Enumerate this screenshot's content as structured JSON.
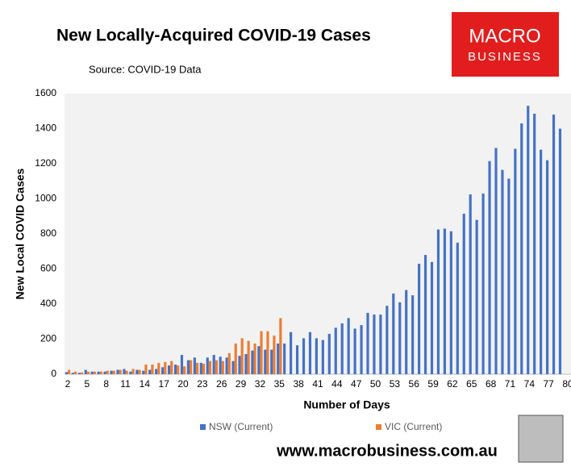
{
  "chart_data": {
    "type": "bar",
    "title": "New Locally-Acquired COVID-19 Cases",
    "subtitle": "Source: COVID-19 Data",
    "x_label": "Number of Days",
    "y_label": "New Local COVID Cases",
    "categories": [
      "2",
      null,
      null,
      "5",
      null,
      null,
      "8",
      null,
      null,
      "11",
      null,
      null,
      "14",
      null,
      null,
      "17",
      null,
      null,
      "20",
      null,
      null,
      "23",
      null,
      null,
      "26",
      null,
      null,
      "29",
      null,
      null,
      "32",
      null,
      null,
      "35",
      null,
      null,
      "38",
      null,
      null,
      "41",
      null,
      null,
      "44",
      null,
      null,
      "47",
      null,
      null,
      "50",
      null,
      null,
      "53",
      null,
      null,
      "56",
      null,
      null,
      "59",
      null,
      null,
      "62",
      null,
      null,
      "65",
      null,
      null,
      "68",
      null,
      null,
      "71",
      null,
      null,
      "74",
      null,
      null,
      "77",
      null,
      null,
      "80"
    ],
    "series": [
      {
        "name": "NSW (Current)",
        "color": "#4472c4",
        "values": [
          12,
          8,
          8,
          25,
          15,
          15,
          15,
          20,
          25,
          30,
          15,
          25,
          20,
          25,
          30,
          40,
          50,
          55,
          110,
          80,
          95,
          65,
          95,
          110,
          100,
          95,
          75,
          105,
          115,
          135,
          160,
          140,
          140,
          175,
          175,
          240,
          165,
          205,
          240,
          205,
          195,
          230,
          265,
          290,
          320,
          260,
          280,
          350,
          340,
          340,
          390,
          460,
          410,
          480,
          450,
          630,
          680,
          640,
          825,
          830,
          815,
          750,
          915,
          1025,
          880,
          1030,
          1215,
          1290,
          1165,
          1115,
          1285,
          1430,
          1530,
          1485,
          1280,
          1220,
          1480,
          1400,
          null
        ]
      },
      {
        "name": "VIC (Current)",
        "color": "#ed7d31",
        "values": [
          25,
          15,
          10,
          15,
          15,
          15,
          20,
          20,
          25,
          20,
          30,
          25,
          55,
          55,
          65,
          70,
          75,
          50,
          45,
          80,
          65,
          60,
          75,
          80,
          75,
          120,
          175,
          205,
          190,
          175,
          245,
          245,
          220,
          320,
          null,
          null,
          null,
          null,
          null,
          null,
          null,
          null,
          null,
          null,
          null,
          null,
          null,
          null,
          null,
          null,
          null,
          null,
          null,
          null,
          null,
          null,
          null,
          null,
          null,
          null,
          null,
          null,
          null,
          null,
          null,
          null,
          null,
          null,
          null,
          null,
          null,
          null,
          null,
          null,
          null,
          null,
          null,
          null,
          null
        ]
      }
    ],
    "ylim": [
      0,
      1600
    ],
    "yticks": [
      0,
      200,
      400,
      600,
      800,
      1000,
      1200,
      1400,
      1600
    ],
    "grid": false,
    "legend": "bottom"
  },
  "logo": {
    "line1": "MACRO",
    "line2": "BUSINESS"
  },
  "footer": "www.macrobusiness.com.au"
}
